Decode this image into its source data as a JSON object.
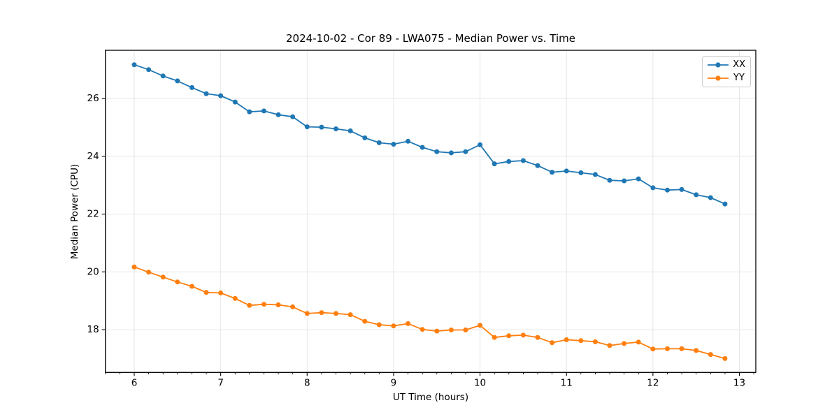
{
  "figure": {
    "background": "#ffffff",
    "text_color": "#000000",
    "grid_color": "#e6e6e6",
    "spine_color": "#000000",
    "legend_border_color": "#cccccc"
  },
  "chart_data": {
    "type": "line",
    "title": "2024-10-02 - Cor 89 - LWA075 - Median Power vs. Time",
    "xlabel": "UT Time (hours)",
    "ylabel": "Median Power (CPU)",
    "xlim": [
      5.666,
      13.19
    ],
    "ylim": [
      16.52,
      27.67
    ],
    "xticks": [
      6,
      7,
      8,
      9,
      10,
      11,
      12,
      13
    ],
    "yticks": [
      18,
      20,
      22,
      24,
      26
    ],
    "x_minor_step": 0.16667,
    "grid": true,
    "legend_position": "upper right",
    "marker": "o",
    "x": [
      6.0,
      6.167,
      6.333,
      6.5,
      6.667,
      6.833,
      7.0,
      7.167,
      7.333,
      7.5,
      7.667,
      7.833,
      8.0,
      8.167,
      8.333,
      8.5,
      8.667,
      8.833,
      9.0,
      9.167,
      9.333,
      9.5,
      9.667,
      9.833,
      10.0,
      10.167,
      10.333,
      10.5,
      10.667,
      10.833,
      11.0,
      11.167,
      11.333,
      11.5,
      11.667,
      11.833,
      12.0,
      12.167,
      12.333,
      12.5,
      12.667,
      12.833
    ],
    "series": [
      {
        "name": "XX",
        "color": "#1f77b4",
        "values": [
          27.17,
          27.0,
          26.78,
          26.61,
          26.38,
          26.17,
          26.1,
          25.88,
          25.54,
          25.57,
          25.44,
          25.37,
          25.02,
          25.01,
          24.95,
          24.88,
          24.64,
          24.47,
          24.42,
          24.52,
          24.31,
          24.16,
          24.12,
          24.16,
          24.4,
          23.74,
          23.82,
          23.85,
          23.68,
          23.45,
          23.49,
          23.43,
          23.37,
          23.17,
          23.15,
          23.22,
          22.91,
          22.83,
          22.85,
          22.67,
          22.57,
          22.35
        ]
      },
      {
        "name": "YY",
        "color": "#ff7f0e",
        "values": [
          20.17,
          19.99,
          19.82,
          19.65,
          19.5,
          19.29,
          19.27,
          19.08,
          18.84,
          18.88,
          18.86,
          18.79,
          18.56,
          18.59,
          18.56,
          18.52,
          18.29,
          18.17,
          18.13,
          18.21,
          18.01,
          17.95,
          17.99,
          17.99,
          18.15,
          17.73,
          17.79,
          17.81,
          17.73,
          17.55,
          17.65,
          17.62,
          17.58,
          17.45,
          17.52,
          17.57,
          17.33,
          17.34,
          17.34,
          17.28,
          17.14,
          17.0
        ]
      }
    ]
  }
}
